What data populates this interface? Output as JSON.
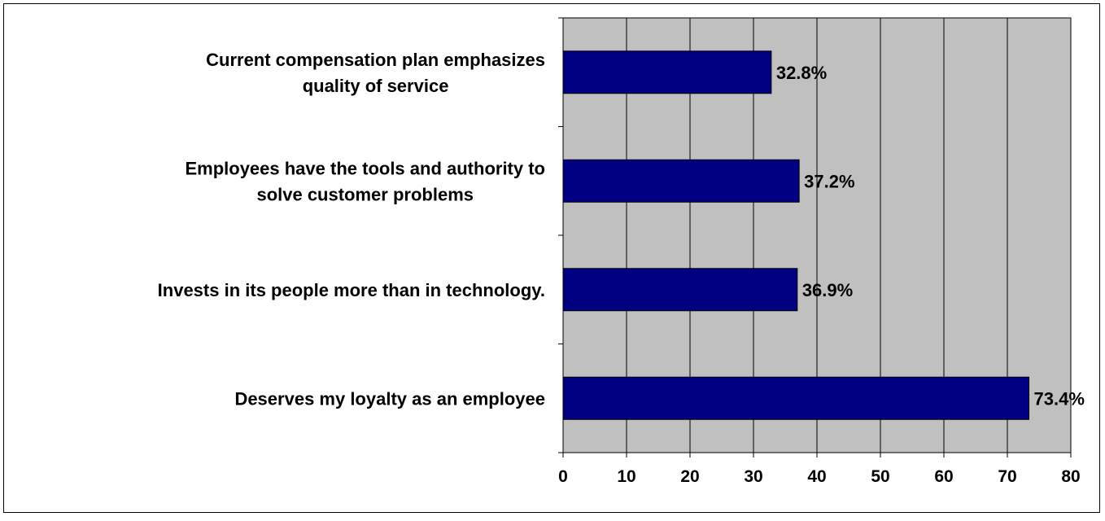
{
  "chart_data": {
    "type": "bar",
    "orientation": "horizontal",
    "categories": [
      [
        "Current compensation plan emphasizes",
        "quality of service"
      ],
      [
        "Employees have the tools and authority to",
        "solve customer problems"
      ],
      [
        "Invests in its people more than in technology."
      ],
      [
        "Deserves my loyalty as an employee"
      ]
    ],
    "values": [
      32.8,
      37.2,
      36.9,
      73.4
    ],
    "data_labels": [
      "32.8%",
      "37.2%",
      "36.9%",
      "73.4%"
    ],
    "x_ticks": [
      "0",
      "10",
      "20",
      "30",
      "40",
      "50",
      "60",
      "70",
      "80"
    ],
    "xlim": [
      0,
      80
    ],
    "title": "",
    "xlabel": "",
    "ylabel": "",
    "grid": "vertical",
    "legend": "none",
    "colors": {
      "bar": "#000080",
      "plot_background": "#c0c0c0",
      "grid": "#000000"
    }
  }
}
